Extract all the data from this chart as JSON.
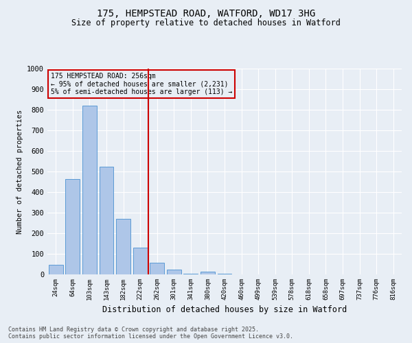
{
  "title_line1": "175, HEMPSTEAD ROAD, WATFORD, WD17 3HG",
  "title_line2": "Size of property relative to detached houses in Watford",
  "xlabel": "Distribution of detached houses by size in Watford",
  "ylabel": "Number of detached properties",
  "categories": [
    "24sqm",
    "64sqm",
    "103sqm",
    "143sqm",
    "182sqm",
    "222sqm",
    "262sqm",
    "301sqm",
    "341sqm",
    "380sqm",
    "420sqm",
    "460sqm",
    "499sqm",
    "539sqm",
    "578sqm",
    "618sqm",
    "658sqm",
    "697sqm",
    "737sqm",
    "776sqm",
    "816sqm"
  ],
  "values": [
    47,
    462,
    820,
    523,
    270,
    130,
    57,
    22,
    4,
    15,
    2,
    1,
    1,
    1,
    1,
    1,
    1,
    1,
    1,
    1,
    1
  ],
  "bar_color": "#aec6e8",
  "bar_edge_color": "#5b9bd5",
  "highlight_line_color": "#cc0000",
  "annotation_text": "175 HEMPSTEAD ROAD: 256sqm\n← 95% of detached houses are smaller (2,231)\n5% of semi-detached houses are larger (113) →",
  "annotation_box_color": "#cc0000",
  "ylim": [
    0,
    1000
  ],
  "yticks": [
    0,
    100,
    200,
    300,
    400,
    500,
    600,
    700,
    800,
    900,
    1000
  ],
  "bg_color": "#e8eef5",
  "grid_color": "#ffffff",
  "footnote": "Contains HM Land Registry data © Crown copyright and database right 2025.\nContains public sector information licensed under the Open Government Licence v3.0."
}
